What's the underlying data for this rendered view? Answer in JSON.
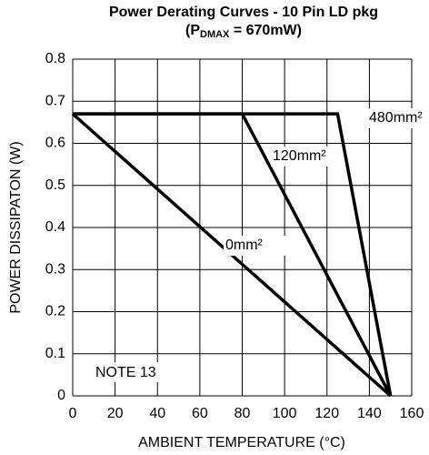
{
  "chart_data": {
    "type": "line",
    "title": "Power Derating Curves - 10 Pin LD pkg",
    "subtitle": {
      "prefix": "(P",
      "subscript": "DMAX",
      "suffix": " = 670mW)"
    },
    "x_label": "AMBIENT TEMPERATURE (°C)",
    "y_label": "POWER DISSIPATON (W)",
    "annotation": "NOTE 13",
    "xlim": [
      0,
      160
    ],
    "xticks": [
      0,
      20,
      40,
      60,
      80,
      100,
      120,
      140,
      160
    ],
    "ylim": [
      0,
      0.8
    ],
    "yticks": [
      0,
      0.1,
      0.2,
      0.3,
      0.4,
      0.5,
      0.6,
      0.7,
      0.8
    ],
    "grid": true,
    "series": [
      {
        "name": "0mm²",
        "color": "#000000",
        "x": [
          0,
          150
        ],
        "values": [
          0.67,
          0
        ]
      },
      {
        "name": "120mm²",
        "color": "#000000",
        "x": [
          0,
          80,
          150
        ],
        "values": [
          0.67,
          0.67,
          0
        ]
      },
      {
        "name": "480mm²",
        "color": "#000000",
        "x": [
          0,
          125,
          150
        ],
        "values": [
          0.67,
          0.67,
          0
        ]
      }
    ]
  }
}
